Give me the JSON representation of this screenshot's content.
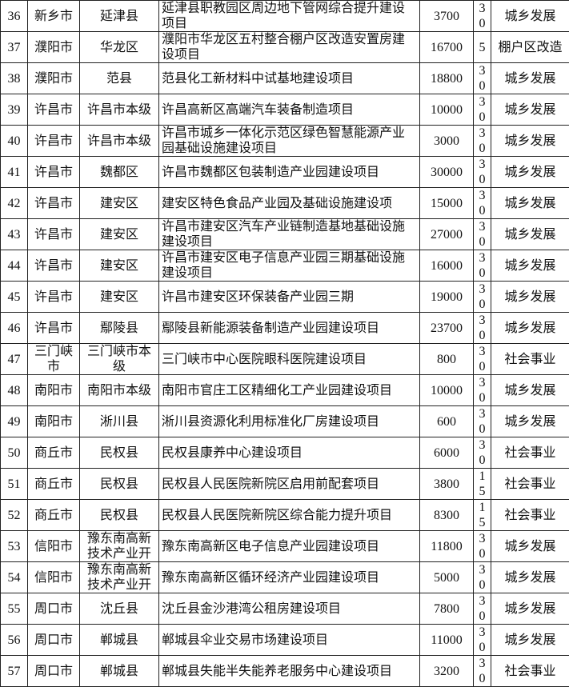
{
  "table": {
    "rows": [
      [
        36,
        "新乡市",
        "延津县",
        "延津县职教园区周边地下管网综合提升建设项目",
        3700,
        30,
        "城乡发展"
      ],
      [
        37,
        "濮阳市",
        "华龙区",
        "濮阳市华龙区五村整合棚户区改造安置房建设项目",
        16700,
        5,
        "棚户区改造"
      ],
      [
        38,
        "濮阳市",
        "范县",
        "范县化工新材料中试基地建设项目",
        18800,
        30,
        "城乡发展"
      ],
      [
        39,
        "许昌市",
        "许昌市本级",
        "许昌高新区高端汽车装备制造项目",
        10000,
        30,
        "城乡发展"
      ],
      [
        40,
        "许昌市",
        "许昌市本级",
        "许昌市城乡一体化示范区绿色智慧能源产业园基础设施建设项目",
        3000,
        30,
        "城乡发展"
      ],
      [
        41,
        "许昌市",
        "魏都区",
        "许昌市魏都区包装制造产业园建设项目",
        30000,
        30,
        "城乡发展"
      ],
      [
        42,
        "许昌市",
        "建安区",
        "建安区特色食品产业园及基础设施建设项",
        15000,
        30,
        "城乡发展"
      ],
      [
        43,
        "许昌市",
        "建安区",
        "许昌市建安区汽车产业链制造基地基础设施建设项目",
        27000,
        30,
        "城乡发展"
      ],
      [
        44,
        "许昌市",
        "建安区",
        "许昌市建安区电子信息产业园三期基础设施建设项目",
        16000,
        30,
        "城乡发展"
      ],
      [
        45,
        "许昌市",
        "建安区",
        "许昌市建安区环保装备产业园三期",
        19000,
        30,
        "城乡发展"
      ],
      [
        46,
        "许昌市",
        "鄢陵县",
        "鄢陵县新能源装备制造产业园建设项目",
        23700,
        30,
        "城乡发展"
      ],
      [
        47,
        "三门峡市",
        "三门峡市本级",
        "三门峡市中心医院眼科医院建设项目",
        800,
        30,
        "社会事业"
      ],
      [
        48,
        "南阳市",
        "南阳市本级",
        "南阳市官庄工区精细化工产业园建设项目",
        10000,
        30,
        "城乡发展"
      ],
      [
        49,
        "南阳市",
        "淅川县",
        "淅川县资源化利用标准化厂房建设项目",
        600,
        30,
        "城乡发展"
      ],
      [
        50,
        "商丘市",
        "民权县",
        "民权县康养中心建设项目",
        6000,
        30,
        "社会事业"
      ],
      [
        51,
        "商丘市",
        "民权县",
        "民权县人民医院新院区启用前配套项目",
        3800,
        15,
        "社会事业"
      ],
      [
        52,
        "商丘市",
        "民权县",
        "民权县人民医院新院区综合能力提升项目",
        8300,
        15,
        "社会事业"
      ],
      [
        53,
        "信阳市",
        "豫东南高新技术产业开",
        "豫东南高新区电子信息产业园建设项目",
        11800,
        30,
        "城乡发展"
      ],
      [
        54,
        "信阳市",
        "豫东南高新技术产业开",
        "豫东南高新区循环经济产业园建设项目",
        5000,
        30,
        "城乡发展"
      ],
      [
        55,
        "周口市",
        "沈丘县",
        "沈丘县金沙港湾公租房建设项目",
        7800,
        30,
        "城乡发展"
      ],
      [
        56,
        "周口市",
        "郸城县",
        "郸城县伞业交易市场建设项目",
        11000,
        30,
        "城乡发展"
      ],
      [
        57,
        "周口市",
        "郸城县",
        "郸城县失能半失能养老服务中心建设项目",
        3200,
        30,
        "社会事业"
      ]
    ]
  }
}
